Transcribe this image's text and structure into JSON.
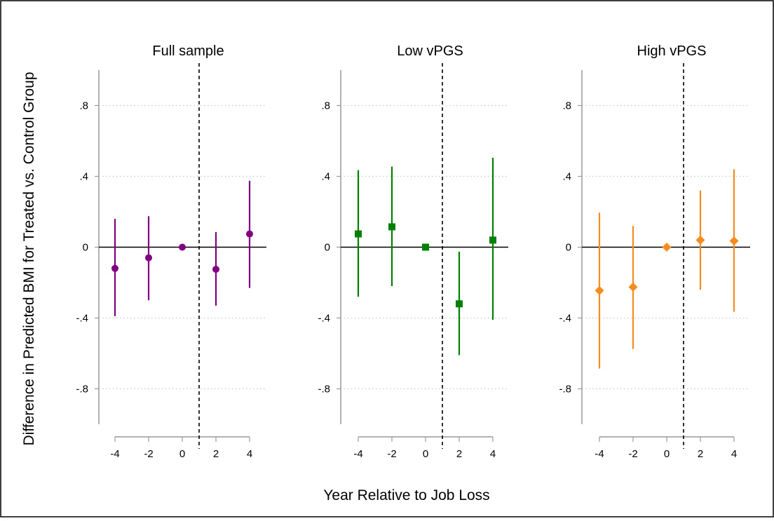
{
  "figure": {
    "ylabel": "Difference in Predicted BMI for Treated vs. Control Group",
    "xlabel": "Year Relative to Job Loss"
  },
  "chart_data": [
    {
      "type": "scatter",
      "title": "Full sample",
      "marker": "circle",
      "color": "#800080",
      "x": [
        -4,
        -2,
        0,
        2,
        4
      ],
      "y": [
        -0.12,
        -0.06,
        0.0,
        -0.125,
        0.075
      ],
      "ci_low": [
        -0.39,
        -0.3,
        0.0,
        -0.33,
        -0.23
      ],
      "ci_high": [
        0.16,
        0.175,
        0.0,
        0.085,
        0.375
      ],
      "xticks": [
        -4,
        -2,
        0,
        2,
        4
      ],
      "xtick_labels": [
        "-4",
        "-2",
        "0",
        "2",
        "4"
      ],
      "yticks": [
        0.8,
        0.4,
        0,
        -0.4,
        -0.8
      ],
      "ytick_labels": [
        ".8",
        ".4",
        "0",
        "-.4",
        "-.8"
      ],
      "xlim": [
        -5,
        5
      ],
      "ylim": [
        -1,
        1
      ],
      "vline_x": 1,
      "hline_y": 0,
      "grid": "dotted horizontal"
    },
    {
      "type": "scatter",
      "title": "Low vPGS",
      "marker": "square",
      "color": "#008000",
      "x": [
        -4,
        -2,
        0,
        2,
        4
      ],
      "y": [
        0.075,
        0.115,
        0.0,
        -0.32,
        0.04
      ],
      "ci_low": [
        -0.28,
        -0.22,
        0.0,
        -0.61,
        -0.41
      ],
      "ci_high": [
        0.435,
        0.455,
        0.0,
        -0.025,
        0.505
      ],
      "xticks": [
        -4,
        -2,
        0,
        2,
        4
      ],
      "xtick_labels": [
        "-4",
        "-2",
        "0",
        "2",
        "4"
      ],
      "yticks": [
        0.8,
        0.4,
        0,
        -0.4,
        -0.8
      ],
      "ytick_labels": [
        ".8",
        ".4",
        "0",
        "-.4",
        "-.8"
      ],
      "xlim": [
        -5,
        5
      ],
      "ylim": [
        -1,
        1
      ],
      "vline_x": 1,
      "hline_y": 0,
      "grid": "dotted horizontal"
    },
    {
      "type": "scatter",
      "title": "High vPGS",
      "marker": "diamond",
      "color": "#F68B1F",
      "x": [
        -4,
        -2,
        0,
        2,
        4
      ],
      "y": [
        -0.245,
        -0.225,
        0.0,
        0.04,
        0.035
      ],
      "ci_low": [
        -0.685,
        -0.575,
        0.0,
        -0.24,
        -0.365
      ],
      "ci_high": [
        0.195,
        0.12,
        0.0,
        0.32,
        0.44
      ],
      "xticks": [
        -4,
        -2,
        0,
        2,
        4
      ],
      "xtick_labels": [
        "-4",
        "-2",
        "0",
        "2",
        "4"
      ],
      "yticks": [
        0.8,
        0.4,
        0,
        -0.4,
        -0.8
      ],
      "ytick_labels": [
        ".8",
        ".4",
        "0",
        "-.4",
        "-.8"
      ],
      "xlim": [
        -5,
        5
      ],
      "ylim": [
        -1,
        1
      ],
      "vline_x": 1,
      "hline_y": 0,
      "grid": "dotted horizontal"
    }
  ]
}
